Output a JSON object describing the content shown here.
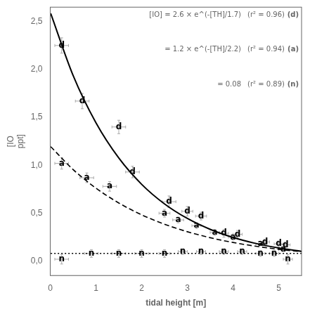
{
  "chart_data": {
    "type": "scatter",
    "xlabel": "tidal height [m]",
    "ylabel": [
      "[IO",
      "ppt]"
    ],
    "xlim": [
      0,
      5.5
    ],
    "ylim": [
      -0.15,
      2.65
    ],
    "xticks": [
      0,
      1,
      2,
      3,
      4,
      5
    ],
    "yticks": [
      {
        "value": 0.0,
        "label": "0,0"
      },
      {
        "value": 0.5,
        "label": "0,5"
      },
      {
        "value": 1.0,
        "label": "1,0"
      },
      {
        "value": 1.5,
        "label": "1,5"
      },
      {
        "value": 2.0,
        "label": "2,0"
      },
      {
        "value": 2.5,
        "label": "2,5"
      }
    ],
    "grid": false,
    "series": [
      {
        "name": "n",
        "marker": "letter",
        "color": "#aaaaaa",
        "x": [
          0.25,
          0.9,
          1.5,
          2.0,
          2.5,
          2.9,
          3.3,
          3.8,
          4.2,
          4.6,
          4.9,
          5.2
        ],
        "values": [
          0.02,
          0.08,
          0.08,
          0.08,
          0.08,
          0.1,
          0.1,
          0.1,
          0.1,
          0.08,
          0.08,
          0.02
        ],
        "xerr": [
          0.15,
          0.15,
          0.15,
          0.15,
          0.12,
          0.1,
          0.1,
          0.1,
          0.1,
          0.1,
          0.1,
          0.1
        ],
        "yerr": [
          0.05,
          0.04,
          0.04,
          0.04,
          0.04,
          0.03,
          0.03,
          0.03,
          0.03,
          0.03,
          0.03,
          0.05
        ]
      },
      {
        "name": "a",
        "marker": "letter",
        "color": "#aaaaaa",
        "x": [
          0.25,
          0.8,
          1.3,
          2.5,
          2.8,
          3.2,
          3.6,
          4.0,
          4.6,
          5.1
        ],
        "values": [
          1.02,
          0.87,
          0.78,
          0.5,
          0.43,
          0.37,
          0.3,
          0.25,
          0.18,
          0.12
        ],
        "xerr": [
          0.15,
          0.15,
          0.15,
          0.12,
          0.12,
          0.1,
          0.1,
          0.1,
          0.1,
          0.1
        ],
        "yerr": [
          0.06,
          0.05,
          0.05,
          0.04,
          0.03,
          0.03,
          0.03,
          0.03,
          0.02,
          0.02
        ]
      },
      {
        "name": "d",
        "marker": "letter",
        "color": "#aaaaaa",
        "x": [
          0.25,
          0.7,
          1.5,
          1.8,
          2.6,
          3.0,
          3.3,
          3.8,
          4.1,
          4.7,
          5.0,
          5.15
        ],
        "values": [
          2.25,
          1.67,
          1.4,
          0.93,
          0.62,
          0.52,
          0.47,
          0.29,
          0.28,
          0.2,
          0.18,
          0.17
        ],
        "xerr": [
          0.15,
          0.15,
          0.15,
          0.15,
          0.15,
          0.12,
          0.12,
          0.1,
          0.1,
          0.1,
          0.1,
          0.1
        ],
        "yerr": [
          0.08,
          0.08,
          0.07,
          0.06,
          0.06,
          0.05,
          0.04,
          0.04,
          0.04,
          0.03,
          0.03,
          0.03
        ]
      },
      {
        "type": "line",
        "line_style": "dotted",
        "color": "#000000",
        "x": [
          0.01,
          5.5
        ],
        "values": [
          0.08,
          0.08
        ]
      },
      {
        "type": "line",
        "line_style": "dashed",
        "color": "#000000",
        "x": [
          0.01,
          0.5,
          1.0,
          1.5,
          2.0,
          2.5,
          3.0,
          3.5,
          4.0,
          4.5,
          5.0,
          5.5
        ],
        "values": [
          1.19456,
          0.95604,
          0.76168,
          0.60684,
          0.48347,
          0.38518,
          0.30688,
          0.24449,
          0.19479,
          0.15519,
          0.12364,
          0.0985
        ]
      },
      {
        "type": "line",
        "line_style": "solid",
        "color": "#000000",
        "x": [
          0.01,
          0.5,
          1.0,
          1.5,
          2.0,
          2.5,
          3.0,
          3.5,
          4.0,
          4.5,
          5.0,
          5.5
        ],
        "values": [
          2.58475,
          1.93749,
          1.4438,
          1.0759,
          0.80175,
          0.59746,
          0.44522,
          0.33177,
          0.24723,
          0.18424,
          0.13729,
          0.10231
        ]
      }
    ],
    "annotations": [
      [
        "[IO] = 2.6 × e^(-[TH]/1.7)",
        "(r² = 0.96)",
        "(d)"
      ],
      [
        "= 1.2 × e^(-[TH]/2.2)",
        "(r² = 0.94)",
        "(a)"
      ],
      [
        "= 0.08",
        "(r² = 0.89)",
        "(n)"
      ]
    ]
  }
}
